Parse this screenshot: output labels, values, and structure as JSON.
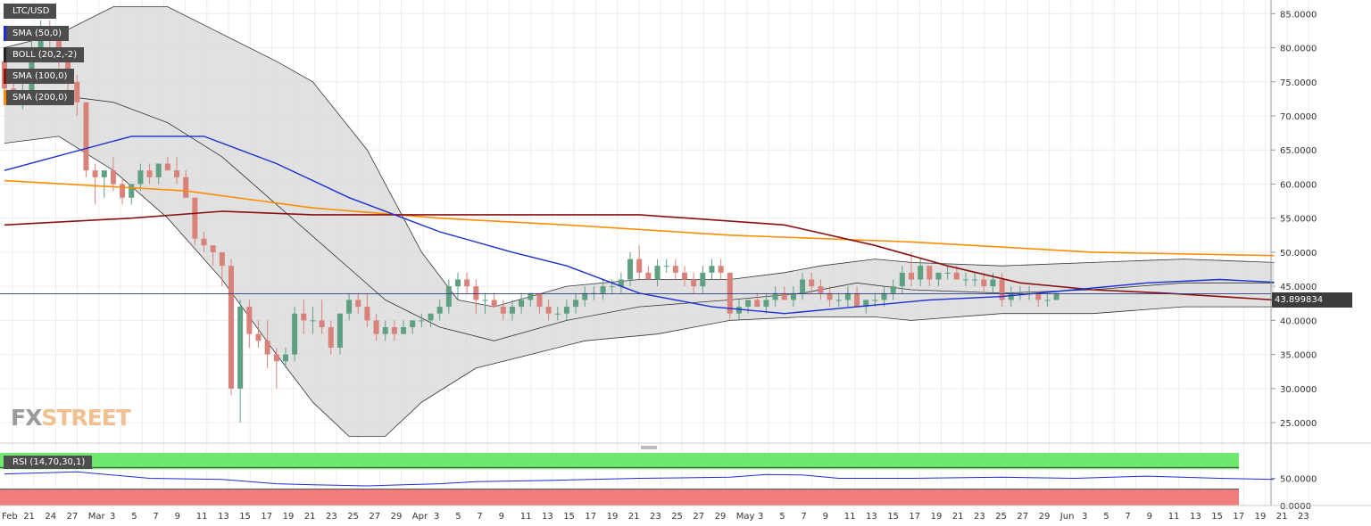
{
  "symbol": "LTC/USD",
  "indicators": [
    {
      "label": "SMA (50,0)",
      "color": "#1a2fd6"
    },
    {
      "label": "BOLL (20,2,-2)",
      "color": "#222222"
    },
    {
      "label": "SMA (100,0)",
      "color": "#8b1010"
    },
    {
      "label": "SMA (200,0)",
      "color": "#ff8c00"
    }
  ],
  "watermark": {
    "part1": "FX",
    "part2": "STREET"
  },
  "current_price_label": "43.899834",
  "rsi_label": "RSI (14,70,30,1)",
  "colors": {
    "bull": "#5f9f82",
    "bear": "#d9827a",
    "band_fill": "#d9d9d9"
  },
  "chart_data": [
    {
      "type": "candlestick",
      "x_unit": "daily",
      "x_labels": [
        "Feb",
        "21",
        "24",
        "27",
        "Mar",
        "3",
        "5",
        "7",
        "9",
        "11",
        "13",
        "15",
        "17",
        "19",
        "21",
        "23",
        "25",
        "27",
        "29",
        "Apr",
        "3",
        "5",
        "7",
        "9",
        "11",
        "13",
        "15",
        "17",
        "19",
        "21",
        "23",
        "25",
        "27",
        "29",
        "May",
        "3",
        "5",
        "7",
        "9",
        "11",
        "13",
        "15",
        "17",
        "19",
        "21",
        "23",
        "25",
        "27",
        "29",
        "Jun",
        "3",
        "5",
        "7",
        "9",
        "11",
        "13",
        "15",
        "17",
        "19",
        "21",
        "23"
      ],
      "ylim": [
        22,
        87
      ],
      "y_ticks": [
        "25.0000",
        "30.0000",
        "35.0000",
        "40.0000",
        "45.0000",
        "50.0000",
        "55.0000",
        "60.0000",
        "65.0000",
        "70.0000",
        "75.0000",
        "80.0000",
        "85.0000"
      ],
      "current_price": 43.9,
      "candles": [
        [
          78,
          80,
          72,
          74
        ],
        [
          74,
          76,
          72,
          72
        ],
        [
          72,
          75,
          71,
          73
        ],
        [
          73,
          81,
          72,
          79
        ],
        [
          79,
          84,
          78,
          82
        ],
        [
          82,
          84,
          80,
          81
        ],
        [
          81,
          82,
          77,
          79
        ],
        [
          79,
          80,
          73,
          75
        ],
        [
          75,
          76,
          70,
          72
        ],
        [
          72,
          72,
          61,
          62
        ],
        [
          62,
          63,
          57,
          61
        ],
        [
          61,
          62,
          58,
          62
        ],
        [
          62,
          64,
          59,
          60
        ],
        [
          60,
          61,
          57,
          58
        ],
        [
          58,
          60,
          57,
          60
        ],
        [
          60,
          63,
          59,
          62
        ],
        [
          62,
          63,
          60,
          61
        ],
        [
          61,
          63,
          60,
          63
        ],
        [
          63,
          64,
          62,
          62
        ],
        [
          62,
          64,
          60,
          61
        ],
        [
          61,
          62,
          58,
          58
        ],
        [
          58,
          58,
          51,
          52
        ],
        [
          52,
          53,
          50,
          51
        ],
        [
          51,
          51,
          48,
          50
        ],
        [
          50,
          50,
          45,
          48
        ],
        [
          48,
          49,
          29,
          30
        ],
        [
          30,
          43,
          25,
          42
        ],
        [
          42,
          43,
          36,
          38
        ],
        [
          38,
          40,
          36,
          37
        ],
        [
          37,
          40,
          33,
          35
        ],
        [
          35,
          36,
          30,
          34
        ],
        [
          34,
          36,
          33,
          35
        ],
        [
          35,
          42,
          34,
          41
        ],
        [
          41,
          43,
          38,
          40
        ],
        [
          40,
          42,
          38,
          40
        ],
        [
          40,
          43,
          38,
          39
        ],
        [
          39,
          40,
          35,
          36
        ],
        [
          36,
          41,
          35,
          41
        ],
        [
          41,
          44,
          40,
          43
        ],
        [
          43,
          44,
          41,
          42
        ],
        [
          42,
          44,
          39,
          40
        ],
        [
          40,
          41,
          37,
          38
        ],
        [
          38,
          40,
          37,
          39
        ],
        [
          39,
          40,
          37,
          38
        ],
        [
          38,
          40,
          38,
          39
        ],
        [
          39,
          40,
          38,
          40
        ],
        [
          40,
          41,
          39,
          40
        ],
        [
          40,
          41,
          39,
          41
        ],
        [
          41,
          43,
          40,
          42
        ],
        [
          42,
          46,
          41,
          45
        ],
        [
          45,
          47,
          43,
          46
        ],
        [
          46,
          47,
          44,
          45
        ],
        [
          45,
          46,
          41,
          43
        ],
        [
          43,
          44,
          41,
          43
        ],
        [
          43,
          44,
          42,
          42
        ],
        [
          42,
          43,
          40,
          41
        ],
        [
          41,
          43,
          40,
          42
        ],
        [
          42,
          44,
          41,
          43
        ],
        [
          43,
          44,
          42,
          44
        ],
        [
          44,
          44,
          41,
          42
        ],
        [
          42,
          43,
          40,
          41
        ],
        [
          41,
          42,
          40,
          41
        ],
        [
          41,
          43,
          40,
          42
        ],
        [
          42,
          44,
          41,
          43
        ],
        [
          43,
          45,
          42,
          44
        ],
        [
          44,
          45,
          43,
          44
        ],
        [
          44,
          46,
          43,
          45
        ],
        [
          45,
          46,
          44,
          45
        ],
        [
          45,
          47,
          44,
          46
        ],
        [
          46,
          50,
          45,
          49
        ],
        [
          49,
          51,
          46,
          47
        ],
        [
          47,
          48,
          46,
          46
        ],
        [
          46,
          49,
          45,
          48
        ],
        [
          48,
          49,
          47,
          48
        ],
        [
          48,
          49,
          46,
          47
        ],
        [
          47,
          48,
          45,
          46
        ],
        [
          46,
          47,
          44,
          45
        ],
        [
          45,
          48,
          44,
          47
        ],
        [
          47,
          49,
          46,
          48
        ],
        [
          48,
          49,
          46,
          47
        ],
        [
          47,
          47,
          40,
          41
        ],
        [
          41,
          43,
          40,
          42
        ],
        [
          42,
          43,
          41,
          43
        ],
        [
          43,
          44,
          42,
          42
        ],
        [
          42,
          44,
          41,
          43
        ],
        [
          43,
          45,
          42,
          44
        ],
        [
          44,
          45,
          43,
          43
        ],
        [
          43,
          45,
          42,
          44
        ],
        [
          44,
          47,
          43,
          46
        ],
        [
          46,
          47,
          44,
          45
        ],
        [
          45,
          46,
          43,
          44
        ],
        [
          44,
          45,
          42,
          43
        ],
        [
          43,
          44,
          42,
          43
        ],
        [
          43,
          45,
          42,
          44
        ],
        [
          44,
          45,
          42,
          42
        ],
        [
          42,
          43,
          41,
          43
        ],
        [
          43,
          44,
          42,
          43
        ],
        [
          43,
          45,
          42,
          44
        ],
        [
          44,
          46,
          43,
          45
        ],
        [
          45,
          48,
          44,
          47
        ],
        [
          47,
          50,
          45,
          46
        ],
        [
          46,
          49,
          45,
          48
        ],
        [
          48,
          48,
          45,
          46
        ],
        [
          46,
          47,
          45,
          47
        ],
        [
          47,
          48,
          46,
          47
        ],
        [
          47,
          48,
          46,
          46
        ],
        [
          46,
          47,
          45,
          46
        ],
        [
          46,
          47,
          45,
          46
        ],
        [
          46,
          47,
          44,
          45
        ],
        [
          45,
          47,
          44,
          46
        ],
        [
          46,
          47,
          42,
          43
        ],
        [
          43,
          45,
          42,
          44
        ],
        [
          44,
          45,
          43,
          44
        ],
        [
          44,
          45,
          43,
          44
        ],
        [
          44,
          44,
          42,
          43
        ],
        [
          43,
          44,
          42,
          43
        ],
        [
          43,
          44,
          43,
          44
        ]
      ],
      "sma50": [
        [
          0,
          62
        ],
        [
          14,
          67
        ],
        [
          22,
          67
        ],
        [
          30,
          63
        ],
        [
          38,
          58
        ],
        [
          48,
          53
        ],
        [
          56,
          50
        ],
        [
          62,
          48
        ],
        [
          70,
          44
        ],
        [
          78,
          42
        ],
        [
          86,
          41
        ],
        [
          94,
          42
        ],
        [
          102,
          43
        ],
        [
          110,
          43.5
        ],
        [
          118,
          44.5
        ],
        [
          126,
          45.5
        ],
        [
          134,
          46
        ],
        [
          140,
          45.6
        ]
      ],
      "sma100": [
        [
          0,
          54
        ],
        [
          14,
          55
        ],
        [
          24,
          56
        ],
        [
          34,
          55.5
        ],
        [
          54,
          55.5
        ],
        [
          70,
          55.5
        ],
        [
          86,
          54
        ],
        [
          96,
          51
        ],
        [
          104,
          48
        ],
        [
          112,
          45.5
        ],
        [
          120,
          44.5
        ],
        [
          128,
          44
        ],
        [
          134,
          43.5
        ],
        [
          140,
          43
        ]
      ],
      "sma200": [
        [
          0,
          60.5
        ],
        [
          20,
          59
        ],
        [
          34,
          56.5
        ],
        [
          48,
          55
        ],
        [
          62,
          54
        ],
        [
          80,
          52.5
        ],
        [
          100,
          51.5
        ],
        [
          120,
          50
        ],
        [
          140,
          49.5
        ]
      ],
      "boll_upper": [
        [
          0,
          80
        ],
        [
          6,
          82
        ],
        [
          12,
          86
        ],
        [
          18,
          86
        ],
        [
          24,
          82
        ],
        [
          30,
          78
        ],
        [
          34,
          75
        ],
        [
          40,
          65
        ],
        [
          46,
          50
        ],
        [
          50,
          43
        ],
        [
          54,
          42
        ],
        [
          62,
          45
        ],
        [
          70,
          46
        ],
        [
          80,
          46
        ],
        [
          86,
          47
        ],
        [
          90,
          48
        ],
        [
          96,
          49
        ],
        [
          100,
          48.5
        ],
        [
          110,
          48
        ],
        [
          120,
          48.5
        ],
        [
          130,
          49
        ],
        [
          140,
          48.5
        ]
      ],
      "boll_mid": [
        [
          0,
          72
        ],
        [
          6,
          73
        ],
        [
          12,
          72
        ],
        [
          18,
          69
        ],
        [
          24,
          64
        ],
        [
          30,
          57
        ],
        [
          36,
          50
        ],
        [
          42,
          43
        ],
        [
          48,
          39
        ],
        [
          54,
          37
        ],
        [
          62,
          40
        ],
        [
          70,
          42
        ],
        [
          80,
          43
        ],
        [
          88,
          44
        ],
        [
          94,
          45.5
        ],
        [
          100,
          44.5
        ],
        [
          110,
          44
        ],
        [
          120,
          44.5
        ],
        [
          130,
          45.5
        ],
        [
          140,
          45.5
        ]
      ],
      "boll_lower": [
        [
          0,
          66
        ],
        [
          6,
          67
        ],
        [
          12,
          62
        ],
        [
          18,
          55
        ],
        [
          24,
          46
        ],
        [
          30,
          35
        ],
        [
          34,
          28
        ],
        [
          38,
          23
        ],
        [
          42,
          23
        ],
        [
          46,
          28
        ],
        [
          52,
          33
        ],
        [
          58,
          35
        ],
        [
          64,
          37
        ],
        [
          72,
          38
        ],
        [
          80,
          40
        ],
        [
          88,
          40.5
        ],
        [
          96,
          40.5
        ],
        [
          100,
          40
        ],
        [
          110,
          41
        ],
        [
          120,
          41
        ],
        [
          130,
          42
        ],
        [
          140,
          42
        ]
      ]
    },
    {
      "type": "line",
      "name": "RSI (14,70,30,1)",
      "ylim": [
        0,
        100
      ],
      "y_ticks": [
        "50.0000",
        "0.0000"
      ],
      "zones": {
        "overbought": 70,
        "oversold": 30
      },
      "values": [
        [
          0,
          58
        ],
        [
          8,
          62
        ],
        [
          16,
          50
        ],
        [
          24,
          48
        ],
        [
          30,
          40
        ],
        [
          34,
          38
        ],
        [
          40,
          36
        ],
        [
          44,
          38
        ],
        [
          48,
          40
        ],
        [
          52,
          44
        ],
        [
          60,
          46
        ],
        [
          70,
          50
        ],
        [
          80,
          52
        ],
        [
          84,
          57
        ],
        [
          88,
          56
        ],
        [
          92,
          50
        ],
        [
          100,
          50
        ],
        [
          110,
          52
        ],
        [
          118,
          50
        ],
        [
          126,
          54
        ],
        [
          134,
          50
        ],
        [
          140,
          48
        ]
      ]
    }
  ]
}
